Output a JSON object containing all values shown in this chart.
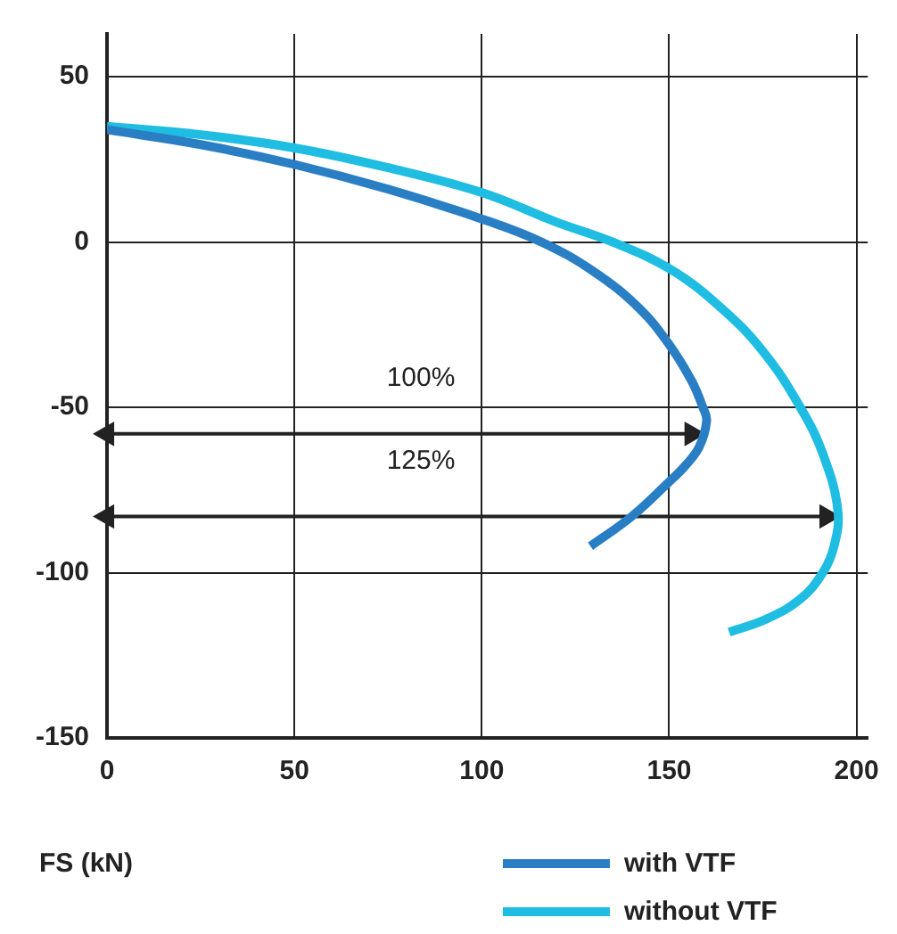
{
  "chart_data": {
    "type": "line",
    "xlabel": "FS (kN)",
    "xlim": [
      0,
      203
    ],
    "xticks": [
      0,
      50,
      100,
      150,
      200
    ],
    "ylim": [
      -150,
      63
    ],
    "yticks": [
      -150,
      -100,
      -50,
      0,
      50
    ],
    "grid": true,
    "legend": "bottom right",
    "marker": "none",
    "line_style": "solid",
    "series": [
      {
        "name": "with VTF",
        "color": "#2a7fc4",
        "x": [
          0,
          25,
          50,
          75,
          100,
          116,
          130,
          142,
          150,
          156,
          159,
          160,
          158,
          154,
          150,
          140,
          129
        ],
        "values": [
          34,
          29.5,
          23.5,
          16,
          7,
          0,
          -9,
          -20,
          -31,
          -42,
          -50,
          -54,
          -62,
          -68,
          -72.5,
          -83,
          -92
        ]
      },
      {
        "name": "without VTF",
        "color": "#1fbde2",
        "x": [
          0,
          25,
          50,
          75,
          100,
          120,
          135,
          150,
          163,
          175,
          185,
          191,
          195,
          194,
          191,
          185,
          176,
          166
        ],
        "values": [
          35,
          32.5,
          28.5,
          22.5,
          15,
          6,
          0,
          -8,
          -19,
          -33,
          -50,
          -64,
          -81,
          -92,
          -100,
          -108,
          -114,
          -118
        ]
      },
      {
        "color": "#222222",
        "type": "line",
        "marker": "triangle",
        "x": [
          0,
          156
        ],
        "values": [
          -58,
          -58
        ]
      },
      {
        "color": "#222222",
        "type": "line",
        "marker": "triangle",
        "x": [
          0,
          192
        ],
        "values": [
          -83,
          -83
        ]
      }
    ],
    "annotations": [
      "100%",
      "125%"
    ]
  }
}
